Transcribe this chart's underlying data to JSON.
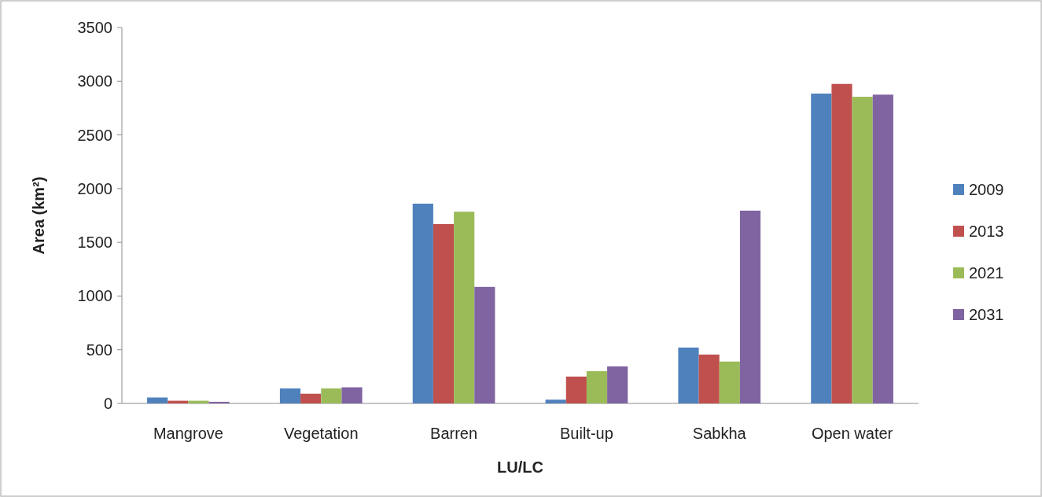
{
  "chart_data": {
    "type": "bar",
    "xlabel": "LU/LC",
    "ylabel": "Area (km²)",
    "categories": [
      "Mangrove",
      "Vegetation",
      "Barren",
      "Built-up",
      "Sabkha",
      "Open water"
    ],
    "series": [
      {
        "name": "2009",
        "color": "#4f81bd",
        "values": [
          55,
          140,
          1860,
          35,
          520,
          2885
        ]
      },
      {
        "name": "2013",
        "color": "#c0504d",
        "values": [
          25,
          90,
          1670,
          250,
          455,
          2975
        ]
      },
      {
        "name": "2021",
        "color": "#9bbb59",
        "values": [
          25,
          140,
          1785,
          300,
          390,
          2855
        ]
      },
      {
        "name": "2031",
        "color": "#8064a2",
        "values": [
          15,
          150,
          1085,
          345,
          1795,
          2875
        ]
      }
    ],
    "ylim": [
      0,
      3500
    ],
    "yticks": [
      0,
      500,
      1000,
      1500,
      2000,
      2500,
      3000,
      3500
    ],
    "grid": false,
    "legend": "right"
  }
}
